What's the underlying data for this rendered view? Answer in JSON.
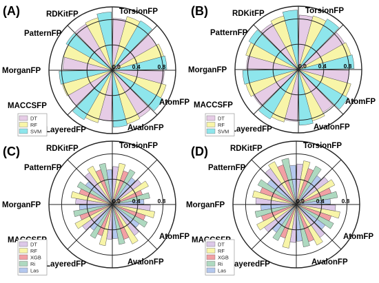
{
  "chart_data": [
    {
      "type": "polar-bar",
      "panel": "(A)",
      "categories": [
        "TorsionFP",
        "RDKitFP",
        "PatternFP",
        "MorganFP",
        "MACCSFP",
        "LayeredFP",
        "AvalonFP",
        "AtomFP"
      ],
      "radial_ticks": [
        "0.0",
        "0.4",
        "0.8"
      ],
      "rlim": [
        0,
        1
      ],
      "series": [
        {
          "name": "DT",
          "color": "#e6cce6",
          "values": [
            0.82,
            0.8,
            0.82,
            0.86,
            0.8,
            0.8,
            0.78,
            0.84
          ]
        },
        {
          "name": "RF",
          "color": "#f8f5a8",
          "values": [
            0.88,
            0.84,
            0.88,
            0.88,
            0.86,
            0.82,
            0.8,
            0.86
          ]
        },
        {
          "name": "SVM",
          "color": "#8ee6ec",
          "values": [
            0.9,
            0.86,
            0.92,
            0.9,
            0.9,
            0.84,
            0.84,
            0.92
          ]
        }
      ]
    },
    {
      "type": "polar-bar",
      "panel": "(B)",
      "categories": [
        "TorsionFP",
        "RDKitFP",
        "PatternFP",
        "MorganFP",
        "MACCSFP",
        "LayeredFP",
        "AvalonFP",
        "AtomFP"
      ],
      "radial_ticks": [
        "0.0",
        "0.4",
        "0.8"
      ],
      "rlim": [
        0,
        1
      ],
      "series": [
        {
          "name": "DT",
          "color": "#e6cce6",
          "values": [
            0.86,
            0.84,
            0.8,
            0.78,
            0.82,
            0.82,
            0.82,
            0.84
          ]
        },
        {
          "name": "RF",
          "color": "#f8f5a8",
          "values": [
            0.88,
            0.86,
            0.86,
            0.84,
            0.86,
            0.86,
            0.86,
            0.88
          ]
        },
        {
          "name": "SVM",
          "color": "#8ee6ec",
          "values": [
            0.92,
            0.88,
            0.9,
            0.88,
            0.9,
            0.88,
            0.9,
            0.94
          ]
        }
      ]
    },
    {
      "type": "polar-bar",
      "panel": "(C)",
      "categories": [
        "TorsionFP",
        "RDKitFP",
        "PatternFP",
        "MorganFP",
        "MACCSFP",
        "LayeredFP",
        "AvalonFP",
        "AtomFP"
      ],
      "radial_ticks": [
        "0.0",
        "0.4",
        "0.8"
      ],
      "rlim": [
        0,
        1
      ],
      "series": [
        {
          "name": "DT",
          "color": "#dcc8e8",
          "values": [
            0.6,
            0.56,
            0.6,
            0.6,
            0.55,
            0.58,
            0.58,
            0.62
          ]
        },
        {
          "name": "RF",
          "color": "#f8f5a8",
          "values": [
            0.66,
            0.64,
            0.68,
            0.7,
            0.66,
            0.66,
            0.66,
            0.68
          ]
        },
        {
          "name": "XGB",
          "color": "#f2a0a4",
          "values": [
            0.56,
            0.5,
            0.55,
            0.58,
            0.52,
            0.54,
            0.55,
            0.58
          ]
        },
        {
          "name": "Ri",
          "color": "#aed9c0",
          "values": [
            0.62,
            0.6,
            0.62,
            0.64,
            0.6,
            0.62,
            0.62,
            0.66
          ]
        },
        {
          "name": "Las",
          "color": "#b4c8ee",
          "values": [
            0.52,
            0.5,
            0.52,
            0.54,
            0.5,
            0.52,
            0.52,
            0.55
          ]
        }
      ]
    },
    {
      "type": "polar-bar",
      "panel": "(D)",
      "categories": [
        "TorsionFP",
        "RDKitFP",
        "PatternFP",
        "MorganFP",
        "MACCSFP",
        "LayeredFP",
        "AvalonFP",
        "AtomFP"
      ],
      "radial_ticks": [
        "0.0",
        "0.4",
        "0.8"
      ],
      "rlim": [
        0,
        1
      ],
      "series": [
        {
          "name": "DT",
          "color": "#dcc8e8",
          "values": [
            0.64,
            0.62,
            0.62,
            0.64,
            0.6,
            0.62,
            0.64,
            0.7
          ]
        },
        {
          "name": "RF",
          "color": "#f8f5a8",
          "values": [
            0.7,
            0.68,
            0.7,
            0.72,
            0.7,
            0.7,
            0.7,
            0.76
          ]
        },
        {
          "name": "XGB",
          "color": "#f2a0a4",
          "values": [
            0.6,
            0.58,
            0.58,
            0.62,
            0.56,
            0.58,
            0.6,
            0.66
          ]
        },
        {
          "name": "Ri",
          "color": "#aed9c0",
          "values": [
            0.68,
            0.66,
            0.66,
            0.68,
            0.64,
            0.66,
            0.68,
            0.74
          ]
        },
        {
          "name": "Las",
          "color": "#b4c8ee",
          "values": [
            0.56,
            0.54,
            0.56,
            0.58,
            0.54,
            0.56,
            0.56,
            0.62
          ]
        }
      ]
    }
  ]
}
